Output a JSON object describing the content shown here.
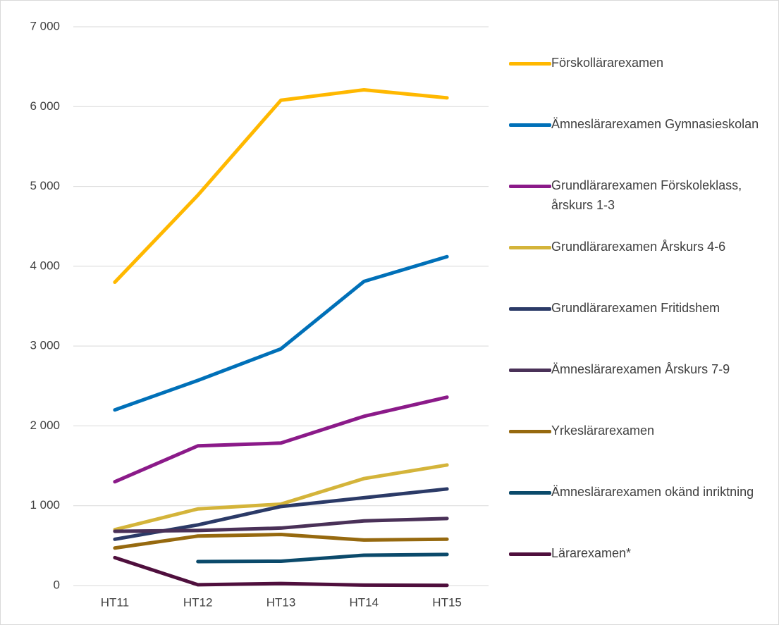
{
  "chart_data": {
    "type": "line",
    "categories": [
      "HT11",
      "HT12",
      "HT13",
      "HT14",
      "HT15"
    ],
    "series": [
      {
        "name": "Förskollärarexamen",
        "color": "#ffb800",
        "values": [
          3800,
          4890,
          6080,
          6210,
          6110
        ]
      },
      {
        "name": "Ämneslärarexamen Gymnasieskolan",
        "color": "#0070b8",
        "values": [
          2200,
          2570,
          2965,
          3810,
          4120
        ]
      },
      {
        "name": "Grundlärarexamen Förskoleklass, årskurs 1-3",
        "color": "#8b1a89",
        "values": [
          1300,
          1750,
          1785,
          2120,
          2360
        ]
      },
      {
        "name": "Grundlärarexamen Årskurs 4-6",
        "color": "#d4b43a",
        "values": [
          700,
          960,
          1020,
          1340,
          1510
        ]
      },
      {
        "name": "Grundlärarexamen Fritidshem",
        "color": "#2b3a67",
        "values": [
          580,
          760,
          990,
          1100,
          1210
        ]
      },
      {
        "name": "Ämneslärarexamen Årskurs 7-9",
        "color": "#4a3158",
        "values": [
          680,
          690,
          720,
          810,
          840
        ]
      },
      {
        "name": "Yrkeslärarexamen",
        "color": "#96690f",
        "values": [
          470,
          620,
          640,
          570,
          580
        ]
      },
      {
        "name": "Ämneslärarexamen okänd inriktning",
        "color": "#0b4a6b",
        "values": [
          null,
          300,
          305,
          380,
          390
        ]
      },
      {
        "name": "Lärarexamen*",
        "color": "#4f0f3d",
        "values": [
          350,
          10,
          25,
          5,
          2
        ]
      }
    ],
    "ylim": [
      0,
      7000
    ],
    "yticks": [
      0,
      {
        "value": 1000,
        "label": "1 000"
      },
      {
        "value": 2000,
        "label": "2 000"
      },
      {
        "value": 3000,
        "label": "3 000"
      },
      {
        "value": 4000,
        "label": "4 000"
      },
      {
        "value": 5000,
        "label": "5 000"
      },
      {
        "value": 6000,
        "label": "6 000"
      },
      {
        "value": 7000,
        "label": "7 000"
      }
    ],
    "grid": true,
    "legend": "right"
  }
}
